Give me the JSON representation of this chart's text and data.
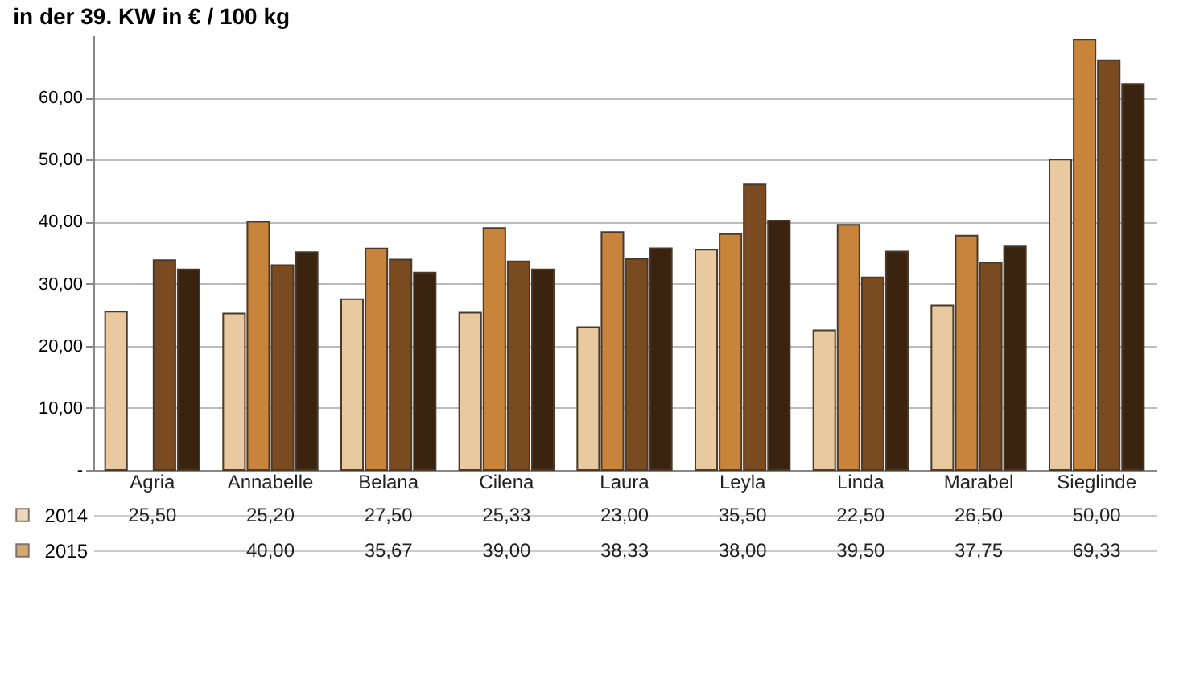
{
  "chart_data": {
    "type": "bar",
    "title": "in der 39. KW in € / 100 kg",
    "categories": [
      "Agria",
      "Annabelle",
      "Belana",
      "Cilena",
      "Laura",
      "Leyla",
      "Linda",
      "Marabel",
      "Sieglinde"
    ],
    "series": [
      {
        "name": "2014",
        "color": "#e8c9a0",
        "values": [
          25.5,
          25.2,
          27.5,
          25.33,
          23.0,
          35.5,
          22.5,
          26.5,
          50.0
        ],
        "value_labels": [
          "25,50",
          "25,20",
          "27,50",
          "25,33",
          "23,00",
          "35,50",
          "22,50",
          "26,50",
          "50,00"
        ]
      },
      {
        "name": "2015",
        "color": "#c8843a",
        "values": [
          null,
          40.0,
          35.67,
          39.0,
          38.33,
          38.0,
          39.5,
          37.75,
          69.33
        ],
        "value_labels": [
          null,
          "40,00",
          "35,67",
          "39,00",
          "38,33",
          "38,00",
          "39,50",
          "37,75",
          "69,33"
        ]
      },
      {
        "color": "#7a4a20",
        "values": [
          33.8,
          33.0,
          33.9,
          33.6,
          34.0,
          46.0,
          31.0,
          33.4,
          66.0
        ]
      },
      {
        "color": "#3a2410",
        "values": [
          32.3,
          35.1,
          31.8,
          32.3,
          35.7,
          40.2,
          35.2,
          36.0,
          62.2
        ]
      }
    ],
    "ylim": [
      0,
      70
    ],
    "yticks": [
      {
        "value": 0,
        "label": "-"
      },
      {
        "value": 10,
        "label": "10,00"
      },
      {
        "value": 20,
        "label": "20,00"
      },
      {
        "value": 30,
        "label": "30,00"
      },
      {
        "value": 40,
        "label": "40,00"
      },
      {
        "value": 50,
        "label": "50,00"
      },
      {
        "value": 60,
        "label": "60,00"
      }
    ],
    "grid": "y",
    "legend": "bottom"
  }
}
